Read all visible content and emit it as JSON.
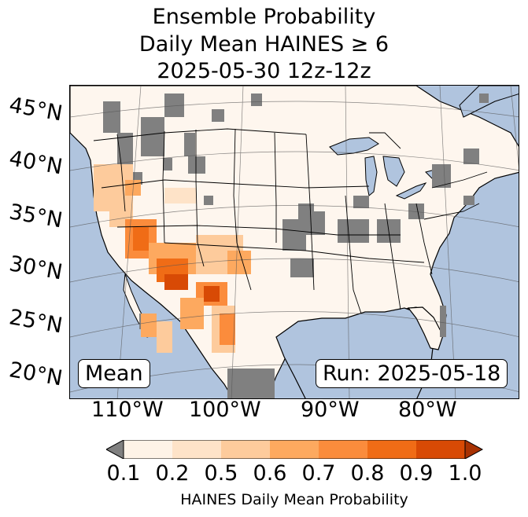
{
  "title": {
    "line1": "Ensemble Probability",
    "line2": "Daily Mean HAINES ≥ 6",
    "line3": "2025-05-30 12z-12z"
  },
  "map": {
    "lat_labels": [
      "45°N",
      "40°N",
      "35°N",
      "30°N",
      "25°N",
      "20°N"
    ],
    "lon_labels": [
      "110°W",
      "100°W",
      "90°W",
      "80°W"
    ],
    "mean_label": "Mean",
    "run_label": "Run: 2025-05-18",
    "colors": {
      "ocean": "#b0c4de",
      "land": "#fef6ee",
      "missing": "#808080"
    }
  },
  "colorbar": {
    "ticks": [
      "0.1",
      "0.2",
      "0.5",
      "0.6",
      "0.7",
      "0.8",
      "0.9",
      "1.0"
    ],
    "label": "HAINES Daily Mean Probability",
    "colors": [
      "#fef3e7",
      "#fee3c8",
      "#fdcb9c",
      "#fda95f",
      "#fb8c3c",
      "#f06c16",
      "#d84a05",
      "#a83203"
    ],
    "under_color": "#808080"
  }
}
